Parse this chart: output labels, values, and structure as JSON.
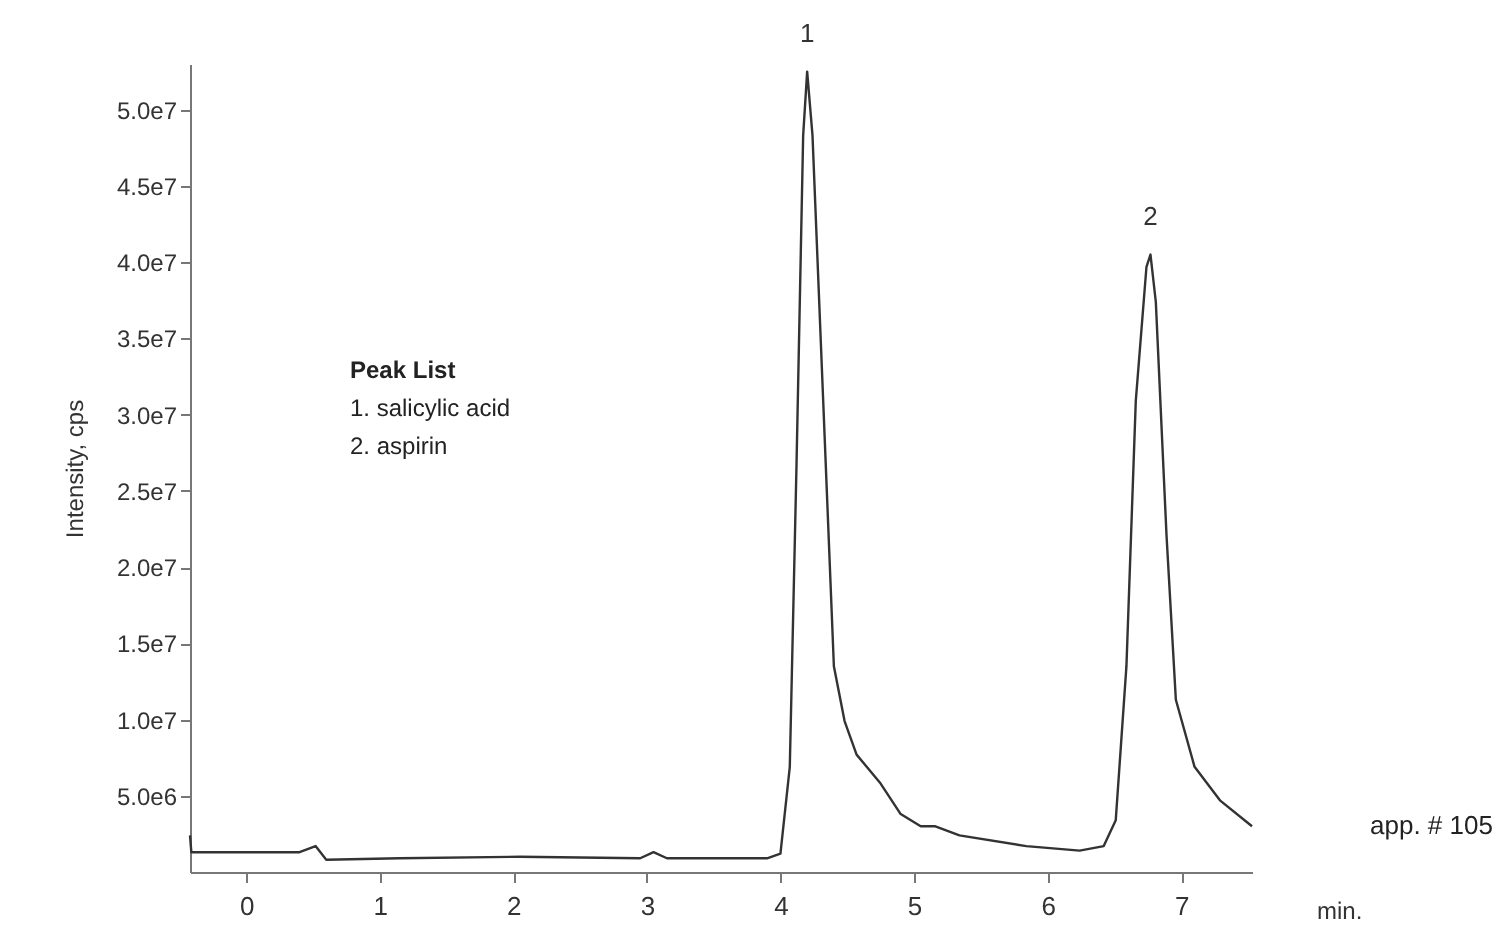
{
  "chart_data": {
    "type": "line",
    "xlabel": "min.",
    "ylabel": "Intensity, cps",
    "x": [
      -0.42,
      -0.41,
      0.4,
      0.52,
      0.6,
      1.15,
      2.05,
      2.95,
      3.05,
      3.15,
      3.9,
      4.0,
      4.07,
      4.12,
      4.17,
      4.2,
      4.24,
      4.32,
      4.4,
      4.48,
      4.57,
      4.75,
      4.9,
      5.05,
      5.16,
      5.34,
      5.84,
      6.24,
      6.42,
      6.51,
      6.59,
      6.66,
      6.74,
      6.77,
      6.81,
      6.89,
      6.96,
      7.1,
      7.29,
      7.53
    ],
    "series": [
      {
        "color": "#333333",
        "values": [
          2400000,
          1300000,
          1300000,
          1700000,
          800000,
          900000,
          1000000,
          900000,
          1300000,
          900000,
          900000,
          1200000,
          6900000,
          26600000,
          48300000,
          52500000,
          48300000,
          30900000,
          13500000,
          9900000,
          7700000,
          5800000,
          3800000,
          3000000,
          3000000,
          2400000,
          1700000,
          1400000,
          1700000,
          3400000,
          13500000,
          30900000,
          39700000,
          40500000,
          37400000,
          22100000,
          11300000,
          6900000,
          4700000,
          3000000
        ]
      }
    ],
    "xlim": [
      -0.42,
      7.53
    ],
    "xticks": [
      0,
      1,
      2,
      3,
      4,
      5,
      6,
      7
    ],
    "ylim": [
      0,
      53000000
    ],
    "yticks": [
      {
        "value": 5000000,
        "label": "5.0e6"
      },
      {
        "value": 10000000,
        "label": "1.0e7"
      },
      {
        "value": 15000000,
        "label": "1.5e7"
      },
      {
        "value": 20000000,
        "label": "2.0e7"
      },
      {
        "value": 25000000,
        "label": "2.5e7"
      },
      {
        "value": 30000000,
        "label": "3.0e7"
      },
      {
        "value": 35000000,
        "label": "3.5e7"
      },
      {
        "value": 40000000,
        "label": "4.0e7"
      },
      {
        "value": 45000000,
        "label": "4.5e7"
      },
      {
        "value": 50000000,
        "label": "5.0e7"
      }
    ],
    "annotations": [
      {
        "text": "1",
        "x": 4.2,
        "y": 52500000
      },
      {
        "text": "2",
        "x": 6.77,
        "y": 40500000
      },
      "Peak List",
      "1.  salicylic acid",
      "2.  aspirin",
      "app. # 105"
    ],
    "grid": false,
    "marker": "none",
    "line_style": "solid"
  }
}
